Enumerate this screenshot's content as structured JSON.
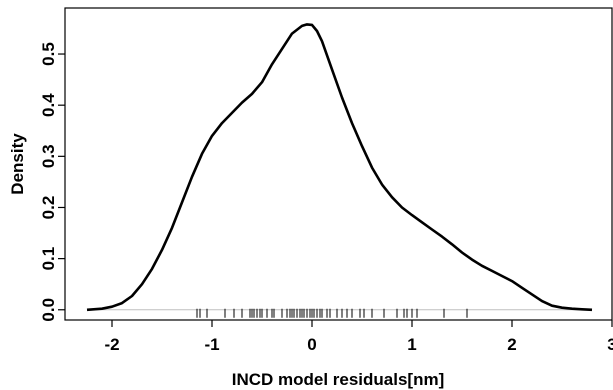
{
  "chart_data": {
    "type": "line",
    "xlabel": "INCD model residuals[nm]",
    "ylabel": "Density",
    "xlim": [
      -2.47,
      3.0
    ],
    "ylim": [
      -0.02,
      0.59
    ],
    "x_ticks": [
      -2,
      -1,
      0,
      1,
      2,
      3
    ],
    "x_tick_labels": [
      "-2",
      "-1",
      "0",
      "1",
      "2",
      "3"
    ],
    "y_ticks": [
      0.0,
      0.1,
      0.2,
      0.3,
      0.4,
      0.5
    ],
    "y_tick_labels": [
      "0.0",
      "0.1",
      "0.2",
      "0.3",
      "0.4",
      "0.5"
    ],
    "grid": false,
    "baseline": 0,
    "colors": {
      "curve": "#000000",
      "baseline": "#bfbfbf",
      "rug": "#000000"
    },
    "series": [
      {
        "x": [
          -2.25,
          -2.1,
          -2.0,
          -1.9,
          -1.8,
          -1.7,
          -1.6,
          -1.5,
          -1.4,
          -1.3,
          -1.2,
          -1.1,
          -1.0,
          -0.9,
          -0.8,
          -0.7,
          -0.6,
          -0.5,
          -0.4,
          -0.3,
          -0.2,
          -0.1,
          -0.05,
          0.0,
          0.05,
          0.1,
          0.2,
          0.3,
          0.4,
          0.5,
          0.6,
          0.7,
          0.8,
          0.9,
          1.0,
          1.1,
          1.2,
          1.3,
          1.4,
          1.5,
          1.6,
          1.7,
          1.8,
          1.9,
          2.0,
          2.1,
          2.2,
          2.3,
          2.4,
          2.5,
          2.6,
          2.7,
          2.8
        ],
        "y": [
          0.0,
          0.002,
          0.006,
          0.013,
          0.027,
          0.05,
          0.08,
          0.117,
          0.16,
          0.21,
          0.26,
          0.305,
          0.34,
          0.365,
          0.385,
          0.405,
          0.422,
          0.445,
          0.48,
          0.51,
          0.54,
          0.555,
          0.558,
          0.557,
          0.545,
          0.525,
          0.47,
          0.415,
          0.365,
          0.32,
          0.278,
          0.245,
          0.22,
          0.2,
          0.185,
          0.171,
          0.157,
          0.143,
          0.128,
          0.112,
          0.098,
          0.086,
          0.076,
          0.066,
          0.056,
          0.043,
          0.03,
          0.017,
          0.008,
          0.004,
          0.002,
          0.001,
          0.0
        ]
      }
    ],
    "rug": [
      -1.15,
      -1.12,
      -1.05,
      -0.87,
      -0.78,
      -0.7,
      -0.62,
      -0.6,
      -0.58,
      -0.55,
      -0.52,
      -0.5,
      -0.45,
      -0.4,
      -0.38,
      -0.3,
      -0.25,
      -0.22,
      -0.2,
      -0.18,
      -0.15,
      -0.12,
      -0.1,
      -0.08,
      -0.05,
      -0.02,
      0.0,
      0.02,
      0.05,
      0.08,
      0.1,
      0.15,
      0.18,
      0.25,
      0.3,
      0.35,
      0.4,
      0.48,
      0.52,
      0.6,
      0.72,
      0.85,
      0.92,
      0.95,
      1.0,
      1.05,
      1.32,
      1.55
    ]
  }
}
